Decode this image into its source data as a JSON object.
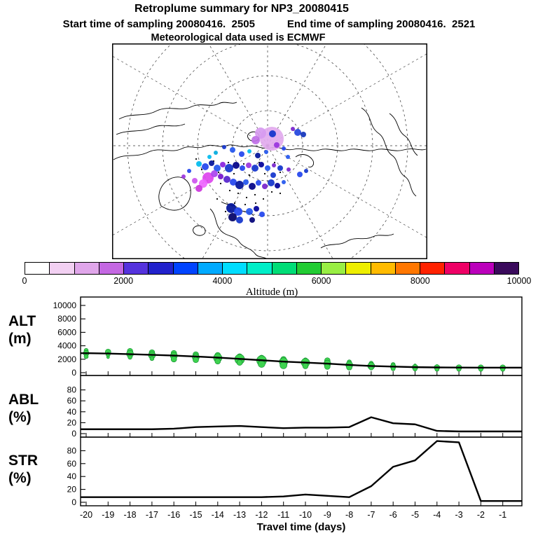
{
  "header": {
    "title": "Retroplume summary for NP3_20080415",
    "start_label": "Start time of sampling 20080416.  2505",
    "end_label": "End time of sampling 20080416.  2521",
    "met_label": "Meteorological data used is ECMWF"
  },
  "map": {
    "graticule": {
      "pole_x": 222,
      "pole_y": 146,
      "circle_radii": [
        50,
        100,
        150,
        200
      ],
      "meridian_count": 12
    },
    "coastlines": [
      "M2,166 C18,156 34,164 52,155 C70,147 84,158 100,150 C112,144 120,152 132,147 C144,142 152,150 163,146 C174,142 182,150 194,147 C205,144 214,152 226,149 C238,146 248,154 260,151 C272,148 282,156 296,152 C310,148 322,156 336,152 C350,148 362,156 376,152 C390,148 402,156 416,152 C430,148 440,154 448,151",
      "M140,236 C150,246 146,258 156,268 C164,276 176,274 182,284 C188,292 198,292 204,300 C208,306 216,304 222,308",
      "M156,226 C164,232 174,228 180,236 C186,242 196,238 202,246",
      "M70,232 C62,216 70,198 86,192 C102,187 114,198 112,216 C110,234 92,246 70,232 Z",
      "M118,262 C124,258 132,261 133,267 C134,273 126,276 120,273 C115,270 114,265 118,262 Z",
      "M10,108 C28,98 46,106 64,96 C82,88 98,98 114,90 C128,84 140,92 152,86 C162,81 170,88 178,84",
      "M6,130 C24,122 40,128 58,120 C74,113 88,122 104,115",
      "M356,92 C372,102 366,118 380,128 C392,136 388,152 400,160 C410,167 406,182 418,190 C428,197 424,210 434,218",
      "M396,100 C410,110 406,124 418,132 C428,139 426,152 436,160",
      "M298,292 C310,284 324,290 336,282 C348,275 360,282 372,276 C382,271 392,277 402,272",
      "M196,128 C202,124 210,127 210,133 C210,139 202,141 197,138 C193,135 192,131 196,128 Z",
      "M262,162 C270,156 280,158 286,166 C290,172 286,178 280,176"
    ],
    "speckles": [
      [
        120,
        165
      ],
      [
        128,
        180
      ],
      [
        145,
        168
      ],
      [
        152,
        184
      ],
      [
        166,
        170
      ],
      [
        174,
        186
      ],
      [
        188,
        172
      ],
      [
        196,
        188
      ],
      [
        210,
        170
      ],
      [
        218,
        186
      ],
      [
        232,
        170
      ],
      [
        240,
        184
      ],
      [
        155,
        200
      ],
      [
        168,
        210
      ],
      [
        180,
        214
      ],
      [
        192,
        220
      ],
      [
        204,
        216
      ],
      [
        216,
        222
      ],
      [
        228,
        212
      ],
      [
        240,
        214
      ],
      [
        175,
        228
      ],
      [
        190,
        230
      ],
      [
        205,
        228
      ],
      [
        162,
        240
      ],
      [
        150,
        222
      ]
    ],
    "dots": [
      [
        228,
        136,
        17,
        "#e2aaee"
      ],
      [
        212,
        128,
        8,
        "#d79af0"
      ],
      [
        205,
        138,
        6,
        "#c070e8"
      ],
      [
        229,
        129,
        5,
        "#1133cc"
      ],
      [
        265,
        127,
        5,
        "#2244dd"
      ],
      [
        273,
        130,
        4,
        "#1133bb"
      ],
      [
        258,
        122,
        3,
        "#7722cc"
      ],
      [
        124,
        172,
        4,
        "#00bbee"
      ],
      [
        133,
        176,
        5,
        "#2244ee"
      ],
      [
        142,
        171,
        4,
        "#001199"
      ],
      [
        150,
        178,
        5,
        "#2255ee"
      ],
      [
        158,
        173,
        4,
        "#8822dd"
      ],
      [
        167,
        178,
        6,
        "#1133cc"
      ],
      [
        177,
        174,
        5,
        "#000088"
      ],
      [
        186,
        178,
        4,
        "#2244ee"
      ],
      [
        195,
        174,
        4,
        "#9933dd"
      ],
      [
        204,
        178,
        5,
        "#1133cc"
      ],
      [
        213,
        173,
        4,
        "#000099"
      ],
      [
        222,
        178,
        4,
        "#2255ee"
      ],
      [
        231,
        174,
        3,
        "#7722cc"
      ],
      [
        240,
        178,
        4,
        "#1133cc"
      ],
      [
        137,
        192,
        8,
        "#dd44ee"
      ],
      [
        130,
        200,
        6,
        "#ee66ff"
      ],
      [
        124,
        207,
        5,
        "#cc33dd"
      ],
      [
        146,
        186,
        5,
        "#aa44ee"
      ],
      [
        155,
        190,
        4,
        "#7711cc"
      ],
      [
        164,
        194,
        5,
        "#5522cc"
      ],
      [
        173,
        198,
        5,
        "#2244ee"
      ],
      [
        182,
        202,
        6,
        "#001199"
      ],
      [
        191,
        198,
        4,
        "#2255ee"
      ],
      [
        200,
        204,
        5,
        "#000088"
      ],
      [
        209,
        199,
        4,
        "#2244ee"
      ],
      [
        218,
        204,
        4,
        "#7722cc"
      ],
      [
        227,
        199,
        5,
        "#1133cc"
      ],
      [
        236,
        203,
        4,
        "#000099"
      ],
      [
        245,
        198,
        3,
        "#2255ee"
      ],
      [
        170,
        235,
        7,
        "#001199"
      ],
      [
        180,
        240,
        6,
        "#2244ee"
      ],
      [
        172,
        248,
        6,
        "#000066"
      ],
      [
        182,
        252,
        5,
        "#1133cc"
      ],
      [
        196,
        240,
        5,
        "#2255ee"
      ],
      [
        206,
        236,
        4,
        "#000099"
      ],
      [
        214,
        244,
        4,
        "#2244ee"
      ],
      [
        200,
        252,
        4,
        "#000077"
      ],
      [
        268,
        187,
        4,
        "#2244ee"
      ],
      [
        277,
        182,
        3,
        "#1133cc"
      ],
      [
        251,
        162,
        3,
        "#2255ee"
      ],
      [
        139,
        162,
        3,
        "#00bbee"
      ],
      [
        110,
        182,
        3,
        "#2244ee"
      ],
      [
        102,
        190,
        3,
        "#9933dd"
      ],
      [
        185,
        158,
        4,
        "#2244ee"
      ],
      [
        196,
        154,
        3,
        "#00bbee"
      ],
      [
        208,
        160,
        4,
        "#001199"
      ],
      [
        220,
        155,
        3,
        "#2255ee"
      ],
      [
        235,
        145,
        4,
        "#9933dd"
      ],
      [
        245,
        150,
        3,
        "#2244ee"
      ],
      [
        160,
        148,
        3,
        "#1133cc"
      ],
      [
        172,
        152,
        4,
        "#2255ee"
      ],
      [
        148,
        156,
        3,
        "#00aadd"
      ],
      [
        230,
        188,
        4,
        "#1133cc"
      ],
      [
        252,
        180,
        3,
        "#7722cc"
      ],
      [
        118,
        196,
        4,
        "#cc55ee"
      ]
    ]
  },
  "colorbar": {
    "colors": [
      "#ffffff",
      "#f2d0f2",
      "#e0a6ea",
      "#c468e2",
      "#5533dd",
      "#2222cc",
      "#0044ff",
      "#00aaff",
      "#00ddff",
      "#00eec8",
      "#00dd77",
      "#22cc33",
      "#99ee44",
      "#eeee00",
      "#ffbb00",
      "#ff7700",
      "#ff2200",
      "#ee0066",
      "#bb00bb",
      "#3a0a5c"
    ],
    "ticks": [
      "0",
      "2000",
      "4000",
      "6000",
      "8000",
      "10000"
    ],
    "label": "Altitude (m)"
  },
  "chart_data": [
    {
      "type": "line+scatter",
      "name": "ALT",
      "ylabel_top": "ALT",
      "ylabel_bottom": "(m)",
      "ylim": [
        0,
        10000
      ],
      "yticks": [
        0,
        2000,
        4000,
        6000,
        8000,
        10000
      ],
      "x": [
        -20,
        -19,
        -18,
        -17,
        -16,
        -15,
        -14,
        -13,
        -12,
        -11,
        -10,
        -9,
        -8,
        -7,
        -6,
        -5,
        -4,
        -3,
        -2,
        -1
      ],
      "mean_altitude_m": [
        2900,
        2850,
        2750,
        2650,
        2550,
        2400,
        2250,
        2050,
        1850,
        1650,
        1500,
        1350,
        1150,
        1000,
        900,
        820,
        780,
        760,
        750,
        750
      ],
      "scatter_color": "#3ed24f",
      "scatter": [
        [
          -20,
          3300,
          3
        ],
        [
          -20,
          2900,
          4
        ],
        [
          -20,
          2400,
          3
        ],
        [
          -19,
          3100,
          4
        ],
        [
          -19,
          2700,
          3
        ],
        [
          -19,
          2300,
          2
        ],
        [
          -18,
          3200,
          4
        ],
        [
          -18,
          2800,
          5
        ],
        [
          -18,
          2300,
          3
        ],
        [
          -17,
          3000,
          4
        ],
        [
          -17,
          2600,
          5
        ],
        [
          -17,
          2100,
          3
        ],
        [
          -16,
          2900,
          4
        ],
        [
          -16,
          2500,
          5
        ],
        [
          -16,
          2000,
          4
        ],
        [
          -15,
          2700,
          4
        ],
        [
          -15,
          2300,
          5
        ],
        [
          -15,
          1900,
          4
        ],
        [
          -14,
          2600,
          4
        ],
        [
          -14,
          2200,
          6
        ],
        [
          -14,
          1700,
          4
        ],
        [
          -13,
          2400,
          4
        ],
        [
          -13,
          2000,
          7
        ],
        [
          -13,
          1500,
          4
        ],
        [
          -12,
          2200,
          4
        ],
        [
          -12,
          1800,
          7
        ],
        [
          -12,
          1300,
          5
        ],
        [
          -11,
          2000,
          4
        ],
        [
          -11,
          1600,
          6
        ],
        [
          -11,
          1100,
          5
        ],
        [
          -10,
          1900,
          3
        ],
        [
          -10,
          1500,
          6
        ],
        [
          -10,
          1000,
          4
        ],
        [
          -9,
          1800,
          4
        ],
        [
          -9,
          1350,
          5
        ],
        [
          -9,
          900,
          4
        ],
        [
          -8,
          1600,
          3
        ],
        [
          -8,
          1150,
          5
        ],
        [
          -8,
          800,
          4
        ],
        [
          -7,
          1400,
          3
        ],
        [
          -7,
          1000,
          5
        ],
        [
          -7,
          700,
          3
        ],
        [
          -6,
          1200,
          3
        ],
        [
          -6,
          900,
          4
        ],
        [
          -6,
          600,
          3
        ],
        [
          -5,
          1100,
          2
        ],
        [
          -5,
          820,
          4
        ],
        [
          -5,
          550,
          3
        ],
        [
          -4,
          1000,
          2
        ],
        [
          -4,
          780,
          4
        ],
        [
          -4,
          520,
          3
        ],
        [
          -3,
          950,
          2
        ],
        [
          -3,
          760,
          4
        ],
        [
          -3,
          510,
          3
        ],
        [
          -2,
          900,
          2
        ],
        [
          -2,
          750,
          4
        ],
        [
          -2,
          500,
          3
        ],
        [
          -1,
          880,
          2
        ],
        [
          -1,
          750,
          4
        ],
        [
          -1,
          500,
          3
        ]
      ]
    },
    {
      "type": "line",
      "name": "ABL",
      "ylabel_top": "ABL",
      "ylabel_bottom": "(%)",
      "ylim": [
        0,
        100
      ],
      "yticks": [
        0,
        20,
        40,
        60,
        80
      ],
      "x": [
        -20,
        -19,
        -18,
        -17,
        -16,
        -15,
        -14,
        -13,
        -12,
        -11,
        -10,
        -9,
        -8,
        -7,
        -6,
        -5,
        -4,
        -3,
        -2,
        -1
      ],
      "values": [
        8,
        8,
        8,
        8,
        9,
        12,
        13,
        14,
        12,
        10,
        11,
        11,
        12,
        30,
        19,
        17,
        5,
        4,
        4,
        4
      ]
    },
    {
      "type": "line",
      "name": "STR",
      "ylabel_top": "STR",
      "ylabel_bottom": "(%)",
      "ylim": [
        0,
        100
      ],
      "yticks": [
        0,
        20,
        40,
        60,
        80
      ],
      "x": [
        -20,
        -19,
        -18,
        -17,
        -16,
        -15,
        -14,
        -13,
        -12,
        -11,
        -10,
        -9,
        -8,
        -7,
        -6,
        -5,
        -4,
        -3,
        -2,
        -1
      ],
      "values": [
        8,
        8,
        8,
        8,
        8,
        8,
        8,
        8,
        8,
        9,
        12,
        10,
        8,
        25,
        55,
        65,
        95,
        93,
        2,
        2
      ]
    }
  ],
  "xaxis": {
    "label": "Travel time (days)",
    "ticks": [
      -20,
      -19,
      -18,
      -17,
      -16,
      -15,
      -14,
      -13,
      -12,
      -11,
      -10,
      -9,
      -8,
      -7,
      -6,
      -5,
      -4,
      -3,
      -2,
      -1
    ]
  }
}
